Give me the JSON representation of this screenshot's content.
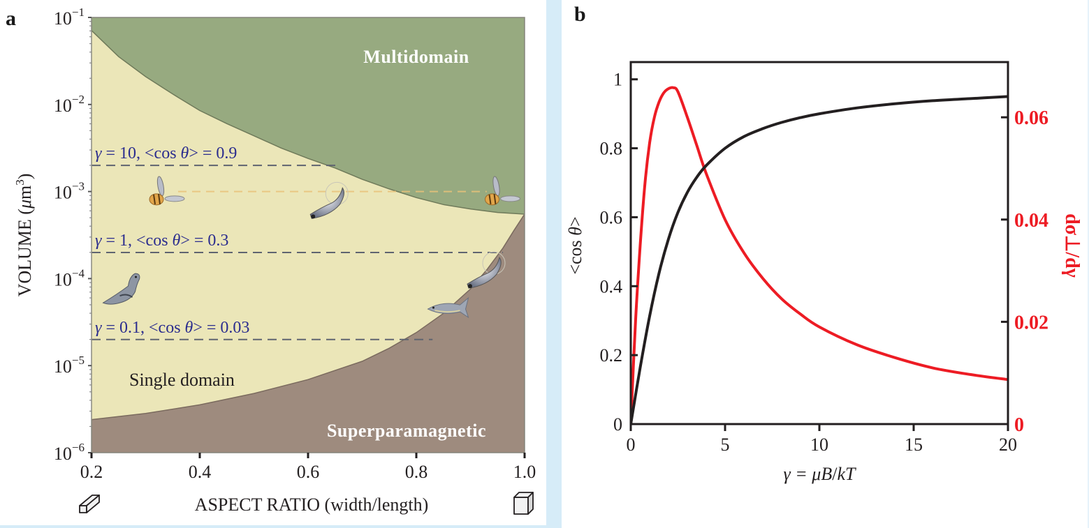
{
  "colors": {
    "multidomain": "#97aa80",
    "single_domain": "#ebe6b8",
    "superparamagnetic": "#9e8b7e",
    "boundary": "#6f7a5a",
    "gamma_lines": "#5f6470",
    "annotation_text": "#2b2d8e",
    "frame_band": "#d6ecf8",
    "cos_curve": "#231f20",
    "deriv_curve": "#ed1c24"
  },
  "chart_data": [
    {
      "panel": "a",
      "type": "area",
      "title": "",
      "panel_label": "a",
      "xlabel": "ASPECT RATIO (width/length)",
      "ylabel_main": "VOLUME (",
      "ylabel_mu": "μ",
      "ylabel_unit": "m",
      "ylabel_sup": "3",
      "ylabel_close": ")",
      "xlim": [
        0.2,
        1.0
      ],
      "ylim": [
        1e-06,
        0.1
      ],
      "yscale": "log",
      "x_ticks": [
        {
          "value": 0.2,
          "label": "0.2"
        },
        {
          "value": 0.4,
          "label": "0.4"
        },
        {
          "value": 0.6,
          "label": "0.6"
        },
        {
          "value": 0.8,
          "label": "0.8"
        },
        {
          "value": 1.0,
          "label": "1.0"
        }
      ],
      "y_ticks": [
        {
          "exp": -1,
          "base": "10",
          "sup": "−1"
        },
        {
          "exp": -2,
          "base": "10",
          "sup": "−2"
        },
        {
          "exp": -3,
          "base": "10",
          "sup": "−3"
        },
        {
          "exp": -4,
          "base": "10",
          "sup": "−4"
        },
        {
          "exp": -5,
          "base": "10",
          "sup": "−5"
        },
        {
          "exp": -6,
          "base": "10",
          "sup": "−6"
        }
      ],
      "regions": [
        {
          "name": "Multidomain",
          "label": "Multidomain"
        },
        {
          "name": "Single domain",
          "label": "Single domain"
        },
        {
          "name": "Superparamagnetic",
          "label": "Superparamagnetic"
        }
      ],
      "multidomain_boundary": {
        "x": [
          0.2,
          0.25,
          0.3,
          0.35,
          0.4,
          0.45,
          0.5,
          0.55,
          0.6,
          0.65,
          0.7,
          0.75,
          0.8,
          0.85,
          0.9,
          0.95,
          1.0
        ],
        "log10_volume": [
          -1.15,
          -1.45,
          -1.68,
          -1.88,
          -2.07,
          -2.22,
          -2.36,
          -2.5,
          -2.62,
          -2.73,
          -2.86,
          -2.97,
          -3.07,
          -3.15,
          -3.2,
          -3.24,
          -3.26
        ]
      },
      "superparamagnetic_boundary": {
        "x": [
          0.2,
          0.3,
          0.4,
          0.5,
          0.6,
          0.7,
          0.75,
          0.8,
          0.85,
          0.9,
          0.93,
          0.96,
          0.98,
          1.0
        ],
        "log10_volume": [
          -5.62,
          -5.55,
          -5.45,
          -5.32,
          -5.16,
          -4.95,
          -4.8,
          -4.62,
          -4.4,
          -4.12,
          -3.9,
          -3.65,
          -3.45,
          -3.26
        ]
      },
      "gamma_lines": [
        {
          "label_prefix": "γ = 10, <cos ",
          "theta": "θ",
          "label_suffix": "> = 0.9",
          "log10_volume": -2.7,
          "x_end": 0.66
        },
        {
          "label_prefix": "γ = 1, <cos ",
          "theta": "θ",
          "label_suffix": "> = 0.3",
          "log10_volume": -3.7,
          "x_end": 0.96
        },
        {
          "label_prefix": "γ = 0.1, <cos ",
          "theta": "θ",
          "label_suffix": "> = 0.03",
          "log10_volume": -4.7,
          "x_end": 0.83
        }
      ],
      "illustrations": [
        {
          "name": "bee",
          "x": 0.32,
          "log10_volume": -3.05
        },
        {
          "name": "magnetotactic-bacterium",
          "x": 0.63,
          "log10_volume": -3.15
        },
        {
          "name": "bee",
          "x": 0.94,
          "log10_volume": -3.05
        },
        {
          "name": "magnetotactic-bacterium",
          "x": 0.92,
          "log10_volume": -3.95
        },
        {
          "name": "pigeon",
          "x": 0.26,
          "log10_volume": -4.15
        },
        {
          "name": "tuna",
          "x": 0.86,
          "log10_volume": -4.35
        }
      ],
      "aspect_icons": [
        {
          "name": "elongated-prism",
          "position": "left"
        },
        {
          "name": "cube",
          "position": "right"
        }
      ]
    },
    {
      "panel": "b",
      "type": "line",
      "title": "",
      "panel_label": "b",
      "xlabel_prefix": "γ = ",
      "xlabel_mu": "μ",
      "xlabel_B": "B",
      "xlabel_slash": "/",
      "xlabel_kT": "kT",
      "ylabel_left_prefix": "<cos ",
      "ylabel_left_theta": "θ",
      "ylabel_left_suffix": ">",
      "ylabel_right": "dσ⊥/dγ",
      "xlim": [
        0,
        20
      ],
      "ylim_left": [
        0,
        1.05
      ],
      "ylim_right": [
        0,
        0.0708
      ],
      "x_ticks": [
        "0",
        "5",
        "10",
        "15",
        "20"
      ],
      "y_ticks_left": [
        "0",
        "0.2",
        "0.4",
        "0.6",
        "0.8",
        "1"
      ],
      "y_ticks_right": [
        "0",
        "0.02",
        "0.04",
        "0.06"
      ],
      "grid": false,
      "legend": "none",
      "series": [
        {
          "name": "<cos θ>",
          "axis": "left",
          "x": [
            0,
            0.5,
            1,
            1.5,
            2,
            2.5,
            3,
            3.5,
            4,
            5,
            6,
            7,
            8,
            9,
            10,
            12,
            14,
            16,
            18,
            20
          ],
          "values": [
            0,
            0.164,
            0.313,
            0.438,
            0.537,
            0.614,
            0.672,
            0.716,
            0.75,
            0.8,
            0.834,
            0.857,
            0.875,
            0.889,
            0.9,
            0.917,
            0.929,
            0.938,
            0.944,
            0.95
          ]
        },
        {
          "name": "dσ⊥/dγ",
          "axis": "right",
          "x": [
            0,
            0.25,
            0.5,
            0.75,
            1,
            1.25,
            1.5,
            1.75,
            2,
            2.25,
            2.5,
            3,
            3.5,
            4,
            5,
            6,
            7,
            8,
            9,
            10,
            12,
            14,
            16,
            18,
            20
          ],
          "values": [
            0,
            0.02,
            0.035,
            0.047,
            0.055,
            0.06,
            0.063,
            0.0648,
            0.0656,
            0.0658,
            0.065,
            0.06,
            0.0545,
            0.049,
            0.04,
            0.0335,
            0.0285,
            0.0245,
            0.0215,
            0.019,
            0.0155,
            0.013,
            0.011,
            0.0097,
            0.0087
          ]
        }
      ]
    }
  ]
}
